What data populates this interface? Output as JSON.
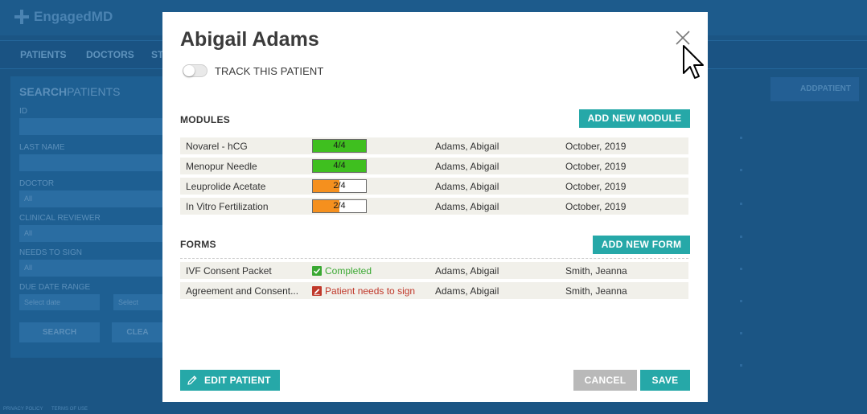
{
  "app": {
    "logo_text": "EngagedMD",
    "nav": [
      "PATIENTS",
      "DOCTORS",
      "ST"
    ],
    "search": {
      "title_bold": "SEARCH",
      "title_light": "PATIENTS",
      "fields": [
        {
          "label": "ID",
          "value": ""
        },
        {
          "label": "LAST NAME",
          "value": ""
        },
        {
          "label": "DOCTOR",
          "value": "All"
        },
        {
          "label": "CLINICAL REVIEWER",
          "value": "All"
        },
        {
          "label": "NEEDS TO SIGN",
          "value": "All"
        }
      ],
      "date_range_label": "DUE DATE RANGE",
      "date_from_placeholder": "Select date",
      "date_to_placeholder": "Select",
      "search_button": "SEARCH",
      "clear_button": "CLEA"
    },
    "add_patient": {
      "bold": "ADD",
      "light": "PATIENT"
    },
    "footer": {
      "privacy": "PRIVACY POLICY",
      "terms": "TERMS OF USE"
    }
  },
  "modal": {
    "title": "Abigail Adams",
    "track_label": "TRACK THIS PATIENT",
    "track_enabled": false,
    "modules": {
      "title": "MODULES",
      "add_button": "ADD NEW MODULE",
      "rows": [
        {
          "name": "Novarel - hCG",
          "progress_label": "4/4",
          "progress": 1.0,
          "color": "#3fbf1f",
          "patient": "Adams, Abigail",
          "date": "October, 2019"
        },
        {
          "name": "Menopur Needle",
          "progress_label": "4/4",
          "progress": 1.0,
          "color": "#3fbf1f",
          "patient": "Adams, Abigail",
          "date": "October, 2019"
        },
        {
          "name": "Leuprolide Acetate",
          "progress_label": "2/4",
          "progress": 0.5,
          "color": "#f5901e",
          "patient": "Adams, Abigail",
          "date": "October, 2019"
        },
        {
          "name": "In Vitro Fertilization",
          "progress_label": "2/4",
          "progress": 0.5,
          "color": "#f5901e",
          "patient": "Adams, Abigail",
          "date": "October, 2019"
        }
      ]
    },
    "forms": {
      "title": "FORMS",
      "add_button": "ADD NEW FORM",
      "rows": [
        {
          "name": "IVF Consent Packet",
          "status": "Completed",
          "status_color": "#3aa832",
          "status_icon": "check-icon",
          "patient": "Adams, Abigail",
          "reviewer": "Smith, Jeanna"
        },
        {
          "name": "Agreement and Consent...",
          "status": "Patient needs to sign",
          "status_color": "#c0392b",
          "status_icon": "sign-icon",
          "patient": "Adams, Abigail",
          "reviewer": "Smith, Jeanna"
        }
      ]
    },
    "edit_button": "EDIT PATIENT",
    "cancel_button": "CANCEL",
    "save_button": "SAVE"
  }
}
